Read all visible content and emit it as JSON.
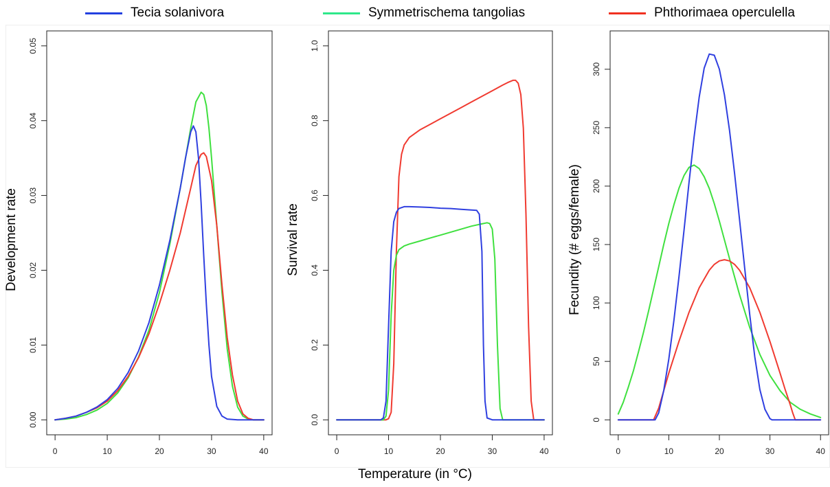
{
  "legend": {
    "items": [
      {
        "label": "Tecia solanivora",
        "color": "#2340e0"
      },
      {
        "label": "Symmetrischema tangolias",
        "color": "#2ee88a"
      },
      {
        "label": "Phthorimaea operculella",
        "color": "#f03020"
      }
    ]
  },
  "xaxis_title": "Temperature (in °C)",
  "colors": {
    "tecia": "#2f3fe0",
    "symm": "#3fe03f",
    "phth": "#f03a30"
  },
  "chart_data": [
    {
      "type": "line",
      "ylabel": "Development rate",
      "xlim": [
        0,
        40
      ],
      "ylim": [
        0,
        0.05
      ],
      "xticks": [
        "0",
        "10",
        "20",
        "30",
        "40"
      ],
      "yticks": [
        "0.00",
        "0.01",
        "0.02",
        "0.03",
        "0.04",
        "0.05"
      ],
      "xtick_values": [
        0,
        10,
        20,
        30,
        40
      ],
      "ytick_values": [
        0,
        0.01,
        0.02,
        0.03,
        0.04,
        0.05
      ],
      "series": [
        {
          "name": "Tecia solanivora",
          "x": [
            0,
            2,
            4,
            6,
            8,
            10,
            12,
            14,
            16,
            18,
            20,
            22,
            24,
            25,
            26,
            26.5,
            27,
            27.5,
            28,
            28.5,
            29,
            29.5,
            30,
            31,
            32,
            33,
            35,
            40
          ],
          "y": [
            0,
            0.0002,
            0.0005,
            0.001,
            0.0017,
            0.0027,
            0.0042,
            0.0063,
            0.0092,
            0.013,
            0.018,
            0.024,
            0.031,
            0.035,
            0.0385,
            0.0393,
            0.0385,
            0.035,
            0.029,
            0.022,
            0.0155,
            0.01,
            0.0058,
            0.0018,
            0.0005,
            0.0001,
            0,
            0
          ]
        },
        {
          "name": "Symmetrischema tangolias",
          "x": [
            0,
            2,
            4,
            6,
            8,
            10,
            12,
            14,
            16,
            18,
            20,
            22,
            24,
            26,
            27,
            28,
            28.5,
            29,
            29.5,
            30,
            31,
            32,
            33,
            34,
            35,
            36,
            37,
            38,
            40
          ],
          "y": [
            0,
            0.0001,
            0.0003,
            0.0007,
            0.0013,
            0.0022,
            0.0036,
            0.0056,
            0.0084,
            0.012,
            0.017,
            0.0235,
            0.031,
            0.039,
            0.0425,
            0.0438,
            0.0435,
            0.042,
            0.039,
            0.035,
            0.026,
            0.017,
            0.0095,
            0.0045,
            0.0017,
            0.0005,
            0.0001,
            0,
            0
          ]
        },
        {
          "name": "Phthorimaea operculella",
          "x": [
            0,
            2,
            4,
            6,
            8,
            10,
            12,
            14,
            16,
            18,
            20,
            22,
            24,
            26,
            27,
            28,
            28.5,
            29,
            30,
            31,
            32,
            33,
            34,
            35,
            36,
            37,
            38,
            40
          ],
          "y": [
            0,
            0.0002,
            0.0005,
            0.001,
            0.0016,
            0.0025,
            0.0039,
            0.0058,
            0.0083,
            0.0115,
            0.0155,
            0.02,
            0.025,
            0.031,
            0.034,
            0.0355,
            0.0357,
            0.0352,
            0.032,
            0.026,
            0.018,
            0.011,
            0.006,
            0.0025,
            0.0008,
            0.0002,
            0,
            0
          ]
        }
      ]
    },
    {
      "type": "line",
      "ylabel": "Survival rate",
      "xlim": [
        0,
        40
      ],
      "ylim": [
        0,
        1.0
      ],
      "xticks": [
        "0",
        "10",
        "20",
        "30",
        "40"
      ],
      "yticks": [
        "0.0",
        "0.2",
        "0.4",
        "0.6",
        "0.8",
        "1.0"
      ],
      "xtick_values": [
        0,
        10,
        20,
        30,
        40
      ],
      "ytick_values": [
        0,
        0.2,
        0.4,
        0.6,
        0.8,
        1.0
      ],
      "series": [
        {
          "name": "Tecia solanivora",
          "x": [
            0,
            8.5,
            9,
            9.5,
            10,
            10.5,
            11,
            11.5,
            12,
            13,
            14,
            16,
            18,
            20,
            22,
            24,
            26,
            27,
            27.5,
            28,
            28.3,
            28.6,
            29,
            30,
            40
          ],
          "y": [
            0,
            0,
            0.005,
            0.05,
            0.25,
            0.45,
            0.53,
            0.555,
            0.565,
            0.57,
            0.57,
            0.569,
            0.568,
            0.566,
            0.565,
            0.563,
            0.561,
            0.56,
            0.55,
            0.45,
            0.2,
            0.05,
            0.005,
            0,
            0
          ]
        },
        {
          "name": "Symmetrischema tangolias",
          "x": [
            0,
            9,
            9.5,
            10,
            10.5,
            11,
            11.5,
            12,
            13,
            14,
            16,
            18,
            20,
            22,
            24,
            26,
            28,
            29,
            29.5,
            30,
            30.5,
            31,
            31.5,
            32,
            40
          ],
          "y": [
            0,
            0,
            0.01,
            0.08,
            0.28,
            0.4,
            0.44,
            0.455,
            0.465,
            0.47,
            0.478,
            0.486,
            0.494,
            0.502,
            0.51,
            0.518,
            0.524,
            0.527,
            0.525,
            0.51,
            0.43,
            0.2,
            0.03,
            0,
            0
          ]
        },
        {
          "name": "Phthorimaea operculella",
          "x": [
            0,
            9.5,
            10,
            10.5,
            11,
            11.5,
            12,
            12.5,
            13,
            14,
            16,
            18,
            20,
            22,
            24,
            26,
            28,
            30,
            32,
            33,
            34,
            34.5,
            35,
            35.5,
            36,
            36.5,
            37,
            37.5,
            38,
            40
          ],
          "y": [
            0,
            0,
            0.003,
            0.02,
            0.15,
            0.45,
            0.65,
            0.71,
            0.735,
            0.755,
            0.775,
            0.79,
            0.805,
            0.82,
            0.835,
            0.85,
            0.865,
            0.88,
            0.895,
            0.902,
            0.908,
            0.908,
            0.9,
            0.87,
            0.78,
            0.55,
            0.25,
            0.05,
            0,
            0
          ]
        }
      ]
    },
    {
      "type": "line",
      "ylabel": "Fecundity (# eggs/female)",
      "xlim": [
        0,
        40
      ],
      "ylim": [
        0,
        320
      ],
      "xticks": [
        "0",
        "10",
        "20",
        "30",
        "40"
      ],
      "yticks": [
        "0",
        "50",
        "100",
        "150",
        "200",
        "250",
        "300"
      ],
      "xtick_values": [
        0,
        10,
        20,
        30,
        40
      ],
      "ytick_values": [
        0,
        50,
        100,
        150,
        200,
        250,
        300
      ],
      "series": [
        {
          "name": "Tecia solanivora",
          "x": [
            0,
            7.3,
            8,
            9,
            10,
            11,
            12,
            13,
            14,
            15,
            16,
            17,
            18,
            19,
            20,
            21,
            22,
            23,
            24,
            25,
            26,
            27,
            28,
            29,
            30,
            30.4,
            40
          ],
          "y": [
            0,
            0,
            6,
            25,
            52,
            85,
            122,
            162,
            203,
            242,
            276,
            301,
            313,
            312,
            300,
            278,
            248,
            211,
            171,
            130,
            90,
            54,
            26,
            9,
            1,
            0,
            0
          ]
        },
        {
          "name": "Symmetrischema tangolias",
          "x": [
            0,
            1,
            2,
            3,
            4,
            5,
            6,
            7,
            8,
            9,
            10,
            11,
            12,
            13,
            14,
            15,
            16,
            17,
            18,
            19,
            20,
            22,
            24,
            26,
            28,
            30,
            32,
            34,
            36,
            38,
            40
          ],
          "y": [
            5,
            15,
            28,
            42,
            58,
            75,
            93,
            112,
            131,
            150,
            168,
            184,
            198,
            209,
            216,
            218,
            215,
            208,
            198,
            185,
            170,
            138,
            107,
            79,
            56,
            38,
            25,
            15,
            9,
            5,
            2
          ]
        },
        {
          "name": "Phthorimaea operculella",
          "x": [
            0,
            7,
            8,
            10,
            12,
            14,
            16,
            18,
            19,
            20,
            21,
            22,
            23,
            24,
            26,
            28,
            30,
            32,
            33,
            34,
            34.5,
            35,
            40
          ],
          "y": [
            0,
            0,
            10,
            40,
            67,
            92,
            113,
            128,
            133,
            136,
            137,
            136,
            133,
            128,
            113,
            92,
            67,
            40,
            26,
            13,
            6,
            0,
            0
          ]
        }
      ]
    }
  ]
}
